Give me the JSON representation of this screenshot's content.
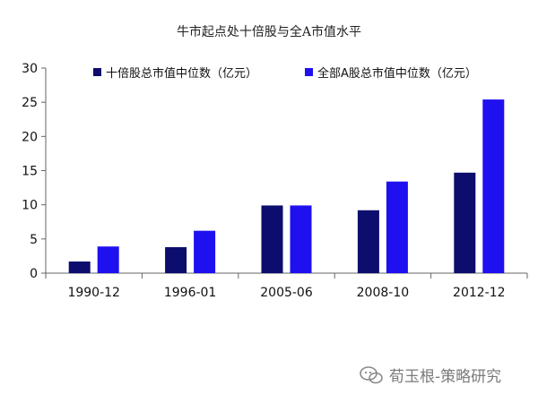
{
  "chart_data": {
    "type": "bar",
    "title": "牛市起点处十倍股与全A市值水平",
    "xlabel": "",
    "ylabel": "",
    "categories": [
      "1990-12",
      "1996-01",
      "2005-06",
      "2008-10",
      "2012-12"
    ],
    "series": [
      {
        "name": "十倍股总市值中位数（亿元）",
        "values": [
          1.7,
          3.8,
          9.9,
          9.2,
          14.7
        ],
        "color": "#0d0d6e"
      },
      {
        "name": "全部A股总市值中位数（亿元）",
        "values": [
          3.9,
          6.2,
          9.9,
          13.4,
          25.4
        ],
        "color": "#1f10f0"
      }
    ],
    "ylim": [
      0,
      30
    ],
    "yticks": [
      0,
      5,
      10,
      15,
      20,
      25,
      30
    ],
    "grid": false,
    "legend_position": "top"
  },
  "watermark": {
    "text": "荀玉根-策略研究",
    "icon": "wechat-icon"
  }
}
